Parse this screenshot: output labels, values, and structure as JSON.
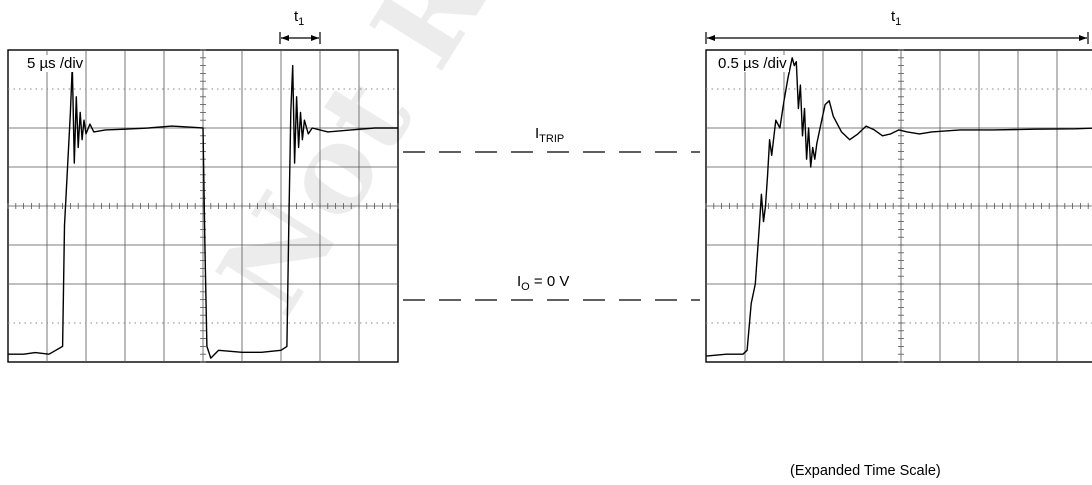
{
  "watermark": "Not Recommended for New Designs",
  "left_scope": {
    "timebase": "5 µs /div",
    "interval_label": {
      "main": "t",
      "sub": "1"
    }
  },
  "right_scope": {
    "timebase": "0.5 µs /div",
    "interval_label": {
      "main": "t",
      "sub": "1"
    },
    "caption": "(Expanded Time Scale)"
  },
  "levels": {
    "trip": {
      "main": "I",
      "sub": "TRIP",
      "rest": ""
    },
    "zero": {
      "main": "I",
      "sub": "O",
      "rest": " = 0 V"
    }
  },
  "chart_data": [
    {
      "type": "line",
      "title": "5 µs /div",
      "xlabel": "",
      "ylabel": "",
      "xlim": [
        0,
        10
      ],
      "ylim": [
        0,
        8
      ],
      "grid": true,
      "series": [
        {
          "x": [
            0,
            0.4,
            0.7,
            1.05,
            1.4,
            1.45,
            1.6,
            1.65,
            1.7,
            1.75,
            1.8,
            1.85,
            1.9,
            1.95,
            2.0,
            2.1,
            2.2,
            2.5,
            3.0,
            3.6,
            4.2,
            4.7,
            5.0,
            5.05,
            5.1,
            5.2,
            5.4,
            6.0,
            6.5,
            7.0,
            7.15,
            7.2,
            7.25,
            7.3,
            7.35,
            7.4,
            7.45,
            7.5,
            7.55,
            7.6,
            7.7,
            7.8,
            8.2,
            8.8,
            9.4,
            10.0
          ],
          "y": [
            0.2,
            0.2,
            0.24,
            0.2,
            0.4,
            3.5,
            6.4,
            7.6,
            5.1,
            6.8,
            5.5,
            6.4,
            5.7,
            6.2,
            5.85,
            6.1,
            5.9,
            5.95,
            5.97,
            6.0,
            6.05,
            6.02,
            6.0,
            3.0,
            0.4,
            0.1,
            0.3,
            0.25,
            0.25,
            0.3,
            0.4,
            3.5,
            6.4,
            7.6,
            5.1,
            6.8,
            5.5,
            6.4,
            5.7,
            6.2,
            5.85,
            6.0,
            5.9,
            5.95,
            6.0,
            6.0
          ]
        }
      ]
    },
    {
      "type": "line",
      "title": "0.5 µs /div",
      "xlabel": "",
      "ylabel": "",
      "xlim": [
        0,
        9.5
      ],
      "ylim": [
        0,
        8
      ],
      "grid": true,
      "series": [
        {
          "x": [
            0,
            0.5,
            0.9,
            1.0,
            1.1,
            1.2,
            1.3,
            1.35,
            1.4,
            1.45,
            1.5,
            1.55,
            1.6,
            1.7,
            1.8,
            1.9,
            2.0,
            2.1,
            2.15,
            2.2,
            2.25,
            2.3,
            2.35,
            2.4,
            2.45,
            2.5,
            2.55,
            2.6,
            2.65,
            2.7,
            2.8,
            2.9,
            3.0,
            3.1,
            3.3,
            3.5,
            3.7,
            3.9,
            4.1,
            4.3,
            4.5,
            4.7,
            4.9,
            5.2,
            5.5,
            5.8,
            6.2,
            7.0,
            8.0,
            9.0,
            9.5
          ],
          "y": [
            0.15,
            0.2,
            0.2,
            0.3,
            1.5,
            2.0,
            3.5,
            4.3,
            3.6,
            4.0,
            4.8,
            5.7,
            5.3,
            6.2,
            6.0,
            6.7,
            7.3,
            7.8,
            7.6,
            7.7,
            6.5,
            7.1,
            5.8,
            6.5,
            5.2,
            6.0,
            5.0,
            5.5,
            5.2,
            5.6,
            6.1,
            6.6,
            6.7,
            6.3,
            5.9,
            5.7,
            5.85,
            6.05,
            5.95,
            5.8,
            5.85,
            5.95,
            5.9,
            5.85,
            5.9,
            5.92,
            5.95,
            5.95,
            5.97,
            5.98,
            6.0
          ]
        }
      ]
    }
  ]
}
